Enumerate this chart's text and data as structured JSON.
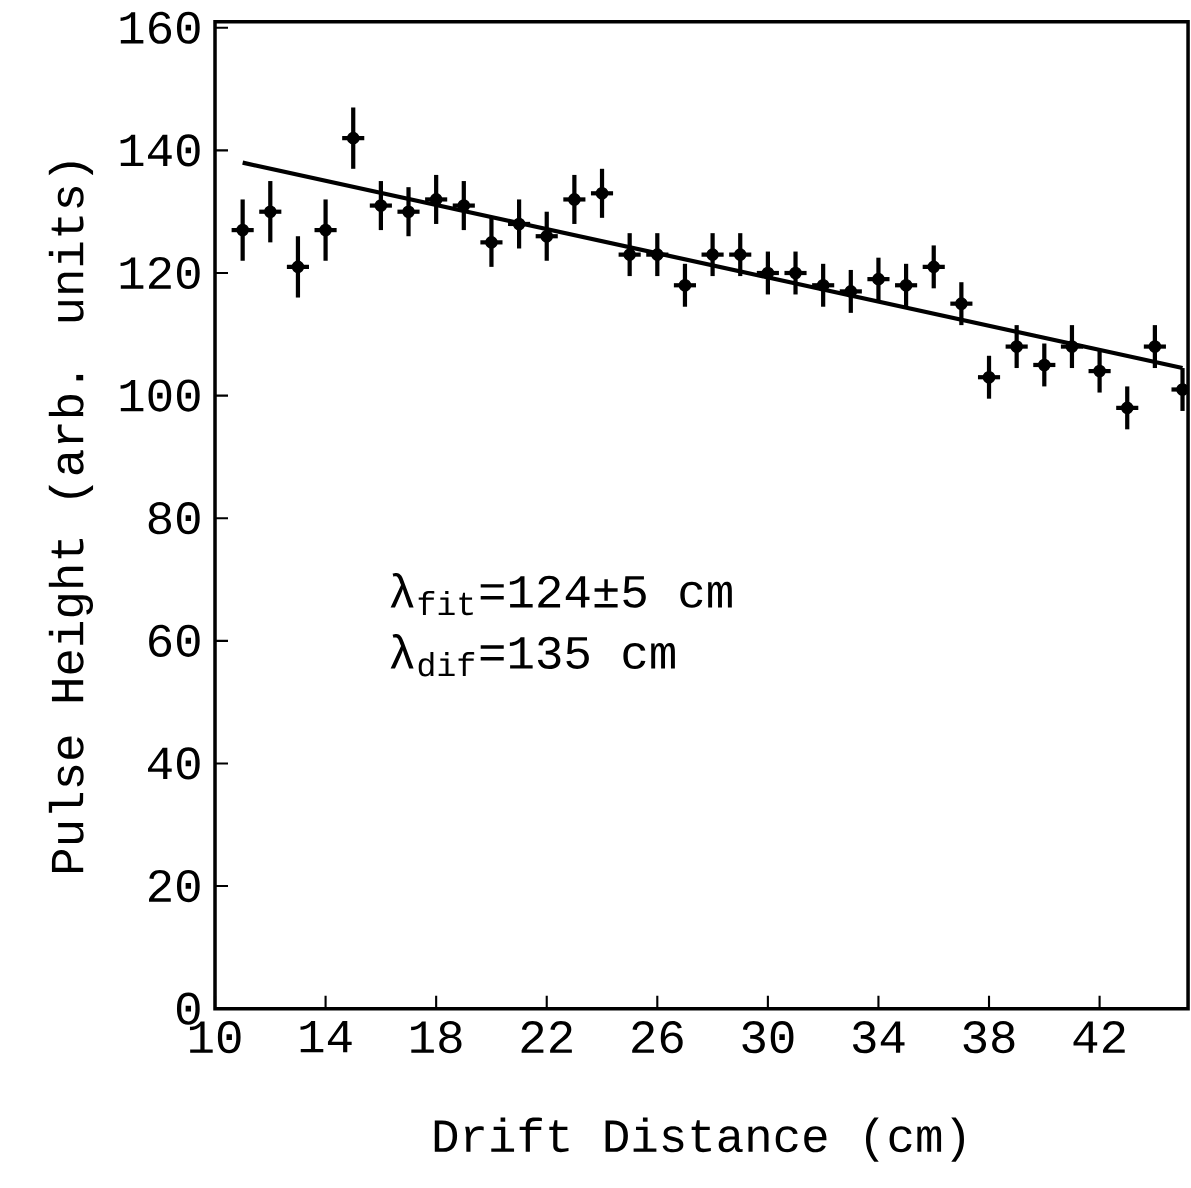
{
  "chart_data": {
    "type": "scatter",
    "xlabel": "Drift Distance (cm)",
    "ylabel": "Pulse Height (arb. units)",
    "xlim": [
      10,
      45.2
    ],
    "ylim": [
      0,
      161
    ],
    "xticks": [
      10,
      14,
      18,
      22,
      26,
      30,
      34,
      38,
      42
    ],
    "yticks": [
      0,
      20,
      40,
      60,
      80,
      100,
      120,
      140,
      160
    ],
    "grid": false,
    "marker": "circle",
    "series": [
      {
        "type": "scatter",
        "color": "#000000",
        "x": [
          11,
          12,
          13,
          14,
          15,
          16,
          17,
          18,
          19,
          20,
          21,
          22,
          23,
          24,
          25,
          26,
          27,
          28,
          29,
          30,
          31,
          32,
          33,
          34,
          35,
          36,
          37,
          38,
          39,
          40,
          41,
          42,
          43,
          44,
          45
        ],
        "values": [
          127,
          130,
          121,
          127,
          142,
          131,
          130,
          132,
          131,
          125,
          128,
          126,
          132,
          133,
          123,
          123,
          118,
          123,
          123,
          120,
          120,
          118,
          117,
          119,
          118,
          121,
          115,
          103,
          108,
          105,
          108,
          104,
          98,
          108,
          101
        ],
        "errors": [
          5,
          5,
          5,
          5,
          5,
          4,
          4,
          4,
          4,
          4,
          4,
          4,
          4,
          4,
          3.5,
          3.5,
          3.5,
          3.5,
          3.5,
          3.5,
          3.5,
          3.5,
          3.5,
          3.5,
          3.5,
          3.5,
          3.5,
          3.5,
          3.5,
          3.5,
          3.5,
          3.5,
          3.5,
          3.5,
          3.5
        ],
        "xerrors": [
          0.4,
          0.4,
          0.4,
          0.4,
          0.4,
          0.4,
          0.4,
          0.4,
          0.4,
          0.4,
          0.4,
          0.4,
          0.4,
          0.4,
          0.4,
          0.4,
          0.4,
          0.4,
          0.4,
          0.4,
          0.4,
          0.4,
          0.4,
          0.4,
          0.4,
          0.4,
          0.4,
          0.4,
          0.4,
          0.4,
          0.4,
          0.4,
          0.4,
          0.4,
          0.4
        ]
      },
      {
        "type": "line",
        "color": "#000000",
        "line_style": "solid",
        "marker": "none",
        "x": [
          11,
          45
        ],
        "values": [
          138,
          104.5
        ]
      }
    ],
    "annotations": [
      "λ$_{fit}$=124±5 cm",
      "λ$_{dif}$=135 cm"
    ]
  }
}
